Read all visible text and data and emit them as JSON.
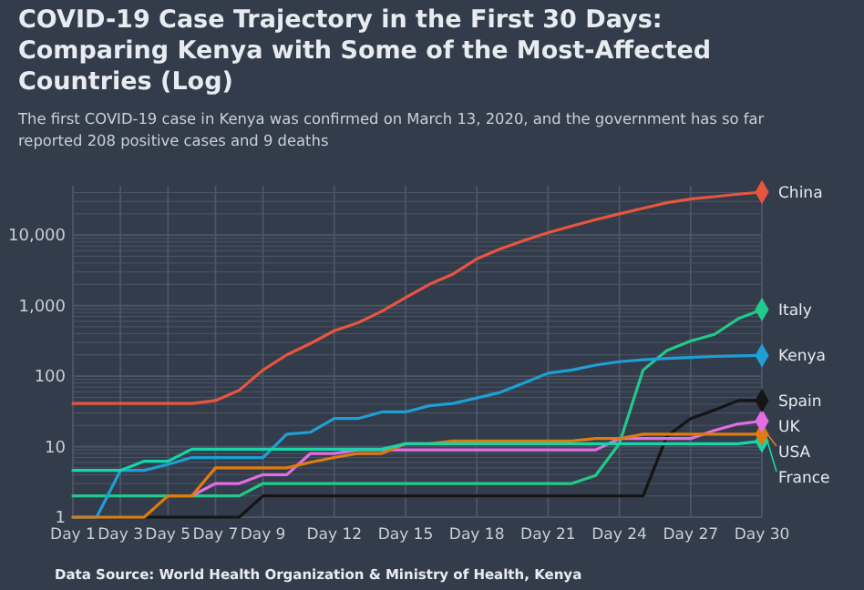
{
  "chart_data": {
    "type": "line",
    "title": "COVID-19 Case Trajectory in the First 30 Days: Comparing Kenya with Some of the Most-Affected Countries (Log)",
    "subtitle": "The first COVID-19 case in Kenya was confirmed on March 13, 2020, and the government has so far reported 208 positive cases and 9 deaths",
    "annotations": [
      "Data Source: World Health Organization & Ministry of Health, Kenya"
    ],
    "categories": [
      "Day 1",
      null,
      "Day 3",
      null,
      "Day 5",
      null,
      "Day 7",
      null,
      "Day 9",
      null,
      null,
      "Day 12",
      null,
      null,
      "Day 15",
      null,
      null,
      "Day 18",
      null,
      null,
      "Day 21",
      null,
      null,
      "Day 24",
      null,
      null,
      "Day 27",
      null,
      null,
      "Day 30"
    ],
    "series": [
      {
        "name": "China",
        "color": "#e8553e",
        "values": [
          41,
          41,
          41,
          41,
          41,
          41,
          45,
          63,
          122,
          200,
          290,
          440,
          570,
          830,
          1300,
          2000,
          2800,
          4600,
          6400,
          8400,
          10800,
          13400,
          16500,
          20000,
          24000,
          28700,
          32400,
          35000,
          38000,
          40600
        ]
      },
      {
        "name": "Italy",
        "color": "#22c98a",
        "values": [
          2,
          2,
          2,
          2,
          2,
          2,
          2,
          2,
          3,
          3,
          3,
          3,
          3,
          3,
          3,
          3,
          3,
          3,
          3,
          3,
          3,
          3,
          3.9,
          11,
          122,
          230,
          315,
          390,
          650,
          880
        ]
      },
      {
        "name": "Kenya",
        "color": "#1f9fd4",
        "values": [
          1,
          1,
          4.6,
          4.6,
          5.6,
          7,
          7,
          7,
          7,
          15,
          16,
          25,
          25,
          31,
          31,
          38,
          41,
          49,
          59,
          80,
          110,
          122,
          143,
          160,
          170,
          178,
          184,
          190,
          194,
          196
        ]
      },
      {
        "name": "Spain",
        "color": "#151515",
        "values": [
          null,
          null,
          null,
          1,
          1,
          1,
          1,
          1,
          2,
          2,
          2,
          2,
          2,
          2,
          2,
          2,
          2,
          2,
          2,
          2,
          2,
          2,
          2,
          2,
          2,
          14,
          25,
          33,
          45,
          45
        ]
      },
      {
        "name": "UK",
        "color": "#e36de3",
        "values": [
          null,
          null,
          null,
          null,
          null,
          2,
          3,
          3,
          4,
          4,
          8,
          8,
          9,
          9,
          9,
          9,
          9,
          9,
          9,
          9,
          9,
          9,
          9,
          13,
          13,
          13,
          13,
          17,
          21,
          23
        ]
      },
      {
        "name": "USA",
        "color": "#e07b10",
        "values": [
          1,
          1,
          1,
          1,
          2,
          2,
          5,
          5,
          5,
          5,
          6,
          7,
          8,
          8,
          11,
          11,
          12,
          12,
          12,
          12,
          12,
          12,
          13,
          13,
          15,
          15,
          15,
          15,
          15,
          15
        ]
      },
      {
        "name": "France",
        "color": "#14d6a8",
        "values": [
          4.6,
          4.6,
          4.6,
          6.2,
          6.2,
          9.2,
          9.2,
          9.2,
          9.2,
          9.2,
          9.2,
          9.2,
          9.2,
          9.2,
          11,
          11,
          11,
          11,
          11,
          11,
          11,
          11,
          11,
          11,
          11,
          11,
          11,
          11,
          11,
          12
        ]
      }
    ],
    "ylim": [
      1,
      50000
    ],
    "yticks": [
      1,
      {
        "value": 2,
        "label": null
      },
      {
        "value": 3,
        "label": null
      },
      {
        "value": 4,
        "label": null
      },
      {
        "value": 5,
        "label": null
      },
      {
        "value": 6,
        "label": null
      },
      {
        "value": 7,
        "label": null
      },
      {
        "value": 8,
        "label": null
      },
      {
        "value": 9,
        "label": null
      },
      10,
      {
        "value": 20,
        "label": null
      },
      {
        "value": 30,
        "label": null
      },
      {
        "value": 40,
        "label": null
      },
      {
        "value": 50,
        "label": null
      },
      {
        "value": 60,
        "label": null
      },
      {
        "value": 70,
        "label": null
      },
      {
        "value": 80,
        "label": null
      },
      {
        "value": 90,
        "label": null
      },
      100,
      {
        "value": 200,
        "label": null
      },
      {
        "value": 300,
        "label": null
      },
      {
        "value": 400,
        "label": null
      },
      {
        "value": 500,
        "label": null
      },
      {
        "value": 600,
        "label": null
      },
      {
        "value": 700,
        "label": null
      },
      {
        "value": 800,
        "label": null
      },
      {
        "value": 900,
        "label": null
      },
      {
        "value": 1000,
        "label": "1,000"
      },
      {
        "value": 2000,
        "label": null
      },
      {
        "value": 3000,
        "label": null
      },
      {
        "value": 4000,
        "label": null
      },
      {
        "value": 5000,
        "label": null
      },
      {
        "value": 6000,
        "label": null
      },
      {
        "value": 7000,
        "label": null
      },
      {
        "value": 8000,
        "label": null
      },
      {
        "value": 9000,
        "label": null
      },
      {
        "value": 10000,
        "label": "10,000"
      },
      {
        "value": 20000,
        "label": null
      },
      {
        "value": 30000,
        "label": null
      },
      {
        "value": 40000,
        "label": null
      }
    ],
    "log": "y",
    "grid": true,
    "legend": "right"
  }
}
